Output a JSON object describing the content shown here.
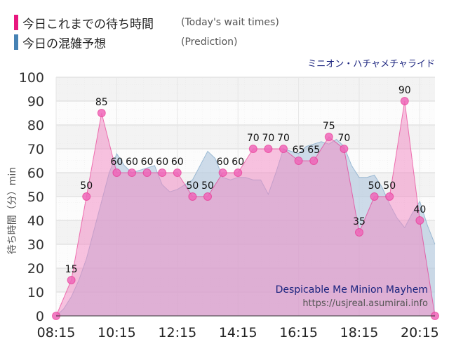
{
  "legend": [
    {
      "label": "今日これまでの待ち時間",
      "sublabel": "(Today's wait times)",
      "color": "#e8177f"
    },
    {
      "label": "今日の混雑予想",
      "sublabel": "(Prediction)",
      "color": "#4682b4"
    }
  ],
  "attraction_jp": "ミニオン・ハチャメチャライド",
  "attraction_en": "Despicable Me Minion Mayhem",
  "source_url": "https://usjreal.asumirai.info",
  "colors": {
    "today": "#e8177f",
    "today_fill": "#f285c2",
    "prediction": "#4682b4",
    "prediction_fill": "#b4cade"
  },
  "chart_data": {
    "type": "area",
    "ylabel": "待ち時間（分）min",
    "ylim": [
      0,
      100
    ],
    "y_ticks": [
      0,
      10,
      20,
      30,
      40,
      50,
      60,
      70,
      80,
      90,
      100
    ],
    "x_ticks": [
      "08:15",
      "10:15",
      "12:15",
      "14:15",
      "16:15",
      "18:15",
      "20:15"
    ],
    "grid": true,
    "series": [
      {
        "key": "today",
        "x": [
          "08:15",
          "08:45",
          "09:15",
          "09:45",
          "10:15",
          "10:45",
          "11:15",
          "11:45",
          "12:15",
          "12:45",
          "13:15",
          "13:45",
          "14:15",
          "14:45",
          "15:15",
          "15:45",
          "16:15",
          "16:45",
          "17:15",
          "17:45",
          "18:15",
          "18:45",
          "19:15",
          "19:45",
          "20:15",
          "20:45"
        ],
        "values": [
          0,
          15,
          50,
          85,
          60,
          60,
          60,
          60,
          60,
          50,
          50,
          60,
          60,
          70,
          70,
          70,
          65,
          65,
          75,
          70,
          35,
          50,
          50,
          90,
          40,
          0
        ]
      },
      {
        "key": "prediction",
        "x": [
          "08:15",
          "08:30",
          "08:45",
          "09:00",
          "09:15",
          "09:30",
          "09:45",
          "10:00",
          "10:15",
          "10:30",
          "10:45",
          "11:00",
          "11:15",
          "11:30",
          "11:45",
          "12:00",
          "12:15",
          "12:30",
          "12:45",
          "13:00",
          "13:15",
          "13:30",
          "13:45",
          "14:00",
          "14:15",
          "14:30",
          "14:45",
          "15:00",
          "15:15",
          "15:30",
          "15:45",
          "16:00",
          "16:15",
          "16:30",
          "16:45",
          "17:00",
          "17:15",
          "17:30",
          "17:45",
          "18:00",
          "18:15",
          "18:30",
          "18:45",
          "19:00",
          "19:15",
          "19:30",
          "19:45",
          "20:00",
          "20:15",
          "20:30",
          "20:45"
        ],
        "values": [
          0,
          3,
          8,
          15,
          24,
          36,
          48,
          60,
          68,
          63,
          60,
          61,
          62,
          63,
          55,
          52,
          53,
          55,
          57,
          63,
          69,
          66,
          58,
          57,
          58,
          58,
          57,
          57,
          51,
          60,
          70,
          69,
          68,
          71,
          72,
          73,
          72,
          74,
          71,
          63,
          58,
          58,
          59,
          54,
          47,
          41,
          37,
          43,
          48,
          38,
          30
        ]
      }
    ]
  }
}
